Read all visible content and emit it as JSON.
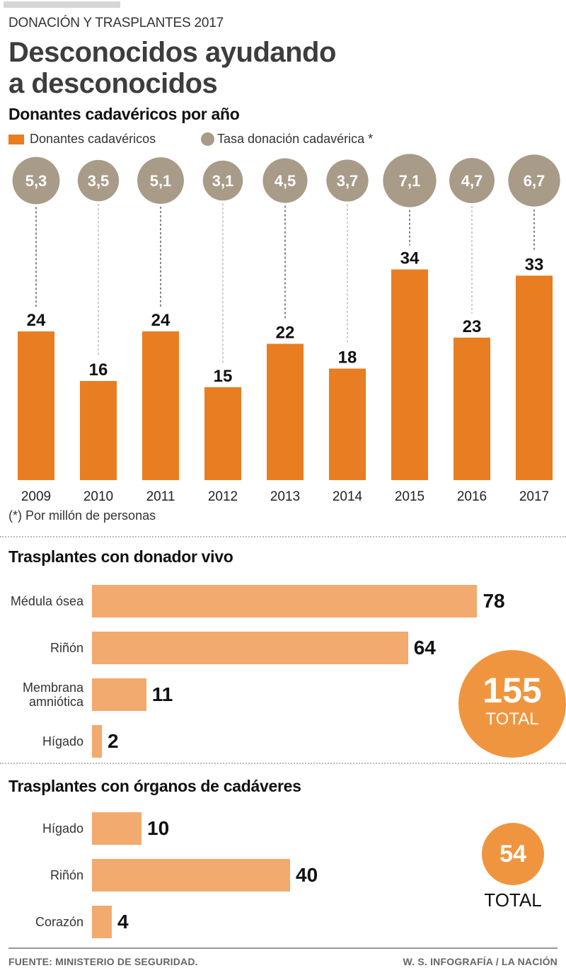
{
  "header": {
    "kicker": "DONACIÓN Y TRASPLANTES 2017",
    "title_line1": "Desconocidos ayudando",
    "title_line2": "a desconocidos"
  },
  "section1": {
    "title": "Donantes cadavéricos por año",
    "legend": [
      {
        "label": "Donantes cadavéricos",
        "color": "#e87d22",
        "icon": "square-icon"
      },
      {
        "label": "Tasa donación cadavérica *",
        "color": "#a89b88",
        "icon": "circle-icon"
      }
    ],
    "footnote": "(*) Por millón de personas"
  },
  "section2": {
    "title": "Trasplantes con donador vivo",
    "total_value": "155",
    "total_label": "TOTAL"
  },
  "section3": {
    "title": "Trasplantes con órganos de cadáveres",
    "total_value": "54",
    "total_label": "TOTAL"
  },
  "footer": {
    "source": "FUENTE: MINISTERIO DE SEGURIDAD.",
    "credit": "W. S. INFOGRAFÍA / LA NACIÓN"
  },
  "chart_data": [
    {
      "type": "bar",
      "title": "Donantes cadavéricos por año",
      "categories": [
        "2009",
        "2010",
        "2011",
        "2012",
        "2013",
        "2014",
        "2015",
        "2016",
        "2017"
      ],
      "series": [
        {
          "name": "Donantes cadavéricos",
          "color": "#e87d22",
          "values": [
            24,
            16,
            24,
            15,
            22,
            18,
            34,
            23,
            33
          ]
        },
        {
          "name": "Tasa donación cadavérica *",
          "color": "#a89b88",
          "values": [
            5.3,
            3.5,
            5.1,
            3.1,
            4.5,
            3.7,
            7.1,
            4.7,
            6.7
          ],
          "labels": [
            "5,3",
            "3,5",
            "5,1",
            "3,1",
            "4,5",
            "3,7",
            "7,1",
            "4,7",
            "6,7"
          ]
        }
      ],
      "xlabel": "",
      "ylabel": "",
      "ylim": [
        0,
        40
      ],
      "grid": false,
      "legend": "top-left",
      "annotation": "(*) Por millón de personas"
    },
    {
      "type": "bar",
      "orientation": "horizontal",
      "title": "Trasplantes con donador vivo",
      "categories": [
        "Médula ósea",
        "Riñón",
        "Membrana amniótica",
        "Hígado"
      ],
      "values": [
        78,
        64,
        11,
        2
      ],
      "color": "#f2aa6e",
      "total": 155
    },
    {
      "type": "bar",
      "orientation": "horizontal",
      "title": "Trasplantes con órganos de cadáveres",
      "categories": [
        "Hígado",
        "Riñón",
        "Corazón"
      ],
      "values": [
        10,
        40,
        4
      ],
      "color": "#f2aa6e",
      "total": 54
    }
  ]
}
